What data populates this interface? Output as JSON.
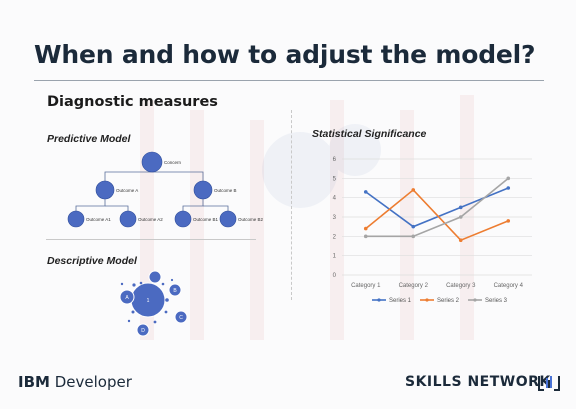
{
  "slide": {
    "title": "When and how to adjust the model?",
    "section_heading": "Diagnostic measures"
  },
  "predictive": {
    "label": "Predictive Model",
    "root": "Concern",
    "level1": [
      "Outcome A",
      "Outcome B"
    ],
    "level2": [
      "Outcome A1",
      "Outcome A2",
      "Outcome B1",
      "Outcome B2"
    ]
  },
  "descriptive": {
    "label": "Descriptive Model",
    "center": "1",
    "satellites": [
      "A",
      "B",
      "C",
      "D"
    ]
  },
  "statistical": {
    "label": "Statistical Significance"
  },
  "chart_data": {
    "type": "line",
    "categories": [
      "Category 1",
      "Category 2",
      "Category 3",
      "Category 4"
    ],
    "series": [
      {
        "name": "Series 1",
        "color": "#4472c4",
        "values": [
          4.3,
          2.5,
          3.5,
          4.5
        ]
      },
      {
        "name": "Series 2",
        "color": "#ed7d31",
        "values": [
          2.4,
          4.4,
          1.8,
          2.8
        ]
      },
      {
        "name": "Series 3",
        "color": "#a5a5a5",
        "values": [
          2,
          2,
          3,
          5
        ]
      }
    ],
    "ylim": [
      0,
      6
    ],
    "yticks": [
      "0",
      "1",
      "2",
      "3",
      "4",
      "5",
      "6"
    ],
    "grid": true,
    "legend": "bottom"
  },
  "footer": {
    "brand_prefix": "IBM",
    "brand_suffix": " Developer",
    "network": "SKILLS NETWORK"
  }
}
